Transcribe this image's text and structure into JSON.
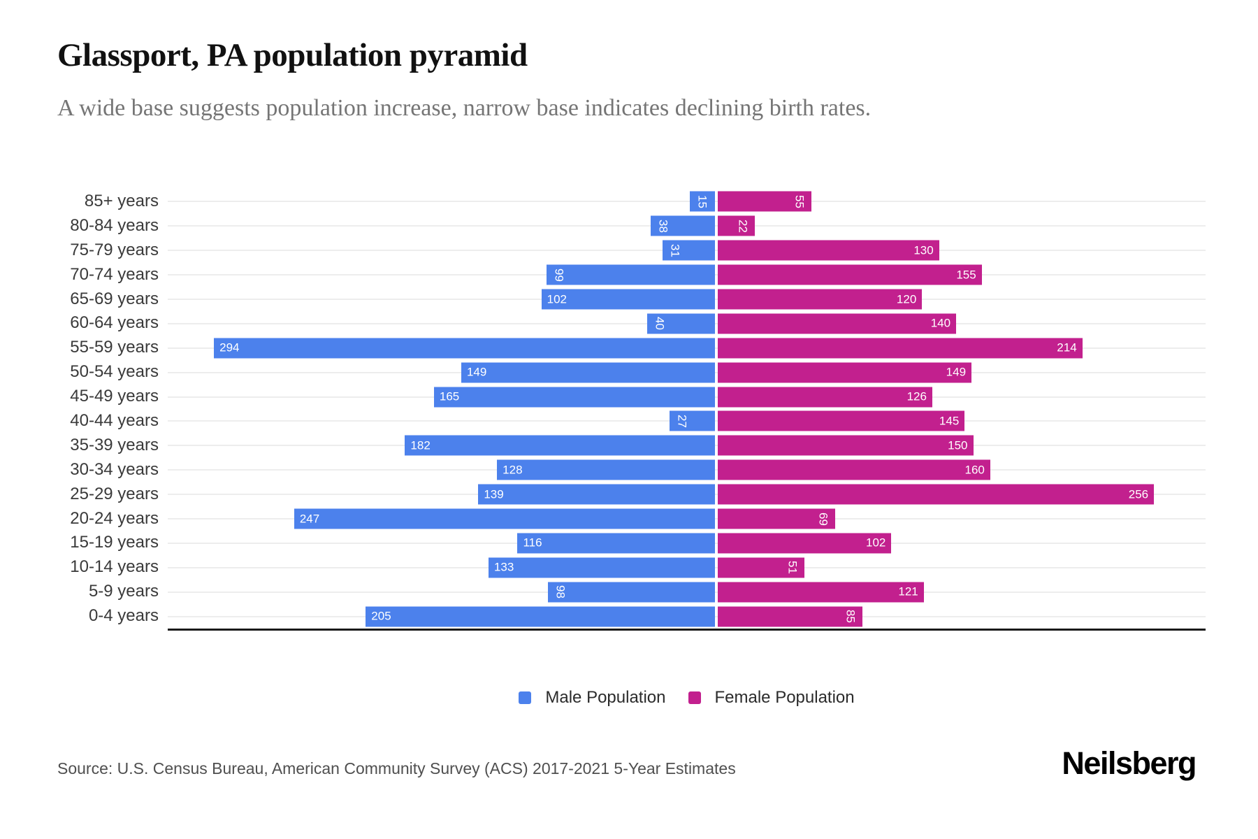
{
  "header": {
    "title": "Glassport, PA population pyramid",
    "subtitle": "A wide base suggests population increase, narrow base indicates declining birth rates."
  },
  "colors": {
    "male": "#4C81EC",
    "female": "#C2208E",
    "gridline": "#EDEDED",
    "axis_line": "#1A1A1A"
  },
  "legend": [
    {
      "label": "Male Population",
      "color": "#4C81EC"
    },
    {
      "label": "Female Population",
      "color": "#C2208E"
    }
  ],
  "chart_data": {
    "type": "bar",
    "variant": "population-pyramid-diverging-horizontal",
    "categories": [
      "85+ years",
      "80-84 years",
      "75-79 years",
      "70-74 years",
      "65-69 years",
      "60-64 years",
      "55-59 years",
      "50-54 years",
      "45-49 years",
      "40-44 years",
      "35-39 years",
      "30-34 years",
      "25-29 years",
      "20-24 years",
      "15-19 years",
      "10-14 years",
      "5-9 years",
      "0-4 years"
    ],
    "series": [
      {
        "name": "Male Population",
        "side": "left",
        "color": "#4C81EC",
        "values": [
          15,
          38,
          31,
          99,
          102,
          40,
          294,
          149,
          165,
          27,
          182,
          128,
          139,
          247,
          116,
          133,
          98,
          205
        ]
      },
      {
        "name": "Female Population",
        "side": "right",
        "color": "#C2208E",
        "values": [
          55,
          22,
          130,
          155,
          120,
          140,
          214,
          149,
          126,
          145,
          150,
          160,
          256,
          69,
          102,
          51,
          121,
          85
        ]
      }
    ],
    "value_labels": "inside-outer-end, white, rotated 90deg when value < 100",
    "xlim_left": 325,
    "xlim_right": 287,
    "grid": "light horizontal guide line at each category center",
    "legend_position": "bottom-center"
  },
  "footer": {
    "source": "Source: U.S. Census Bureau, American Community Survey (ACS) 2017-2021 5-Year Estimates",
    "brand": "Neilsberg"
  }
}
